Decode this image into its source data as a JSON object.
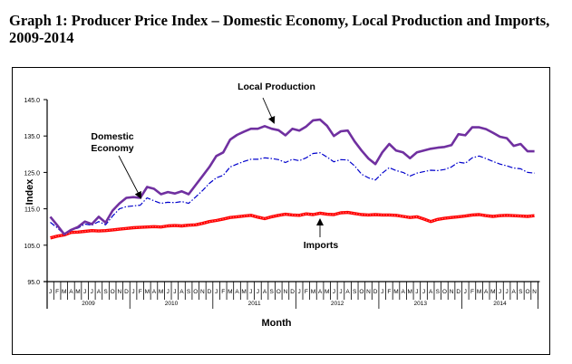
{
  "title_line1": "Graph 1: Producer Price Index –  Domestic Economy, Local Production and Imports,",
  "title_line2": "2009-2014",
  "chart_data": {
    "type": "line",
    "title": "Graph 1: Producer Price Index – Domestic Economy, Local Production and Imports, 2009-2014",
    "xlabel": "Month",
    "ylabel": "Index",
    "ylim": [
      95.0,
      145.0
    ],
    "y_ticks": [
      "95.0",
      "105.0",
      "115.0",
      "125.0",
      "135.0",
      "145.0"
    ],
    "grid": false,
    "legend": "inline annotations with arrows",
    "years": [
      "2009",
      "2010",
      "2011",
      "2012",
      "2013",
      "2014"
    ],
    "month_letters": [
      "J",
      "F",
      "M",
      "A",
      "M",
      "J",
      "J",
      "A",
      "S",
      "O",
      "N",
      "D"
    ],
    "x": [
      "Jan 2009",
      "Feb 2009",
      "Mar 2009",
      "Apr 2009",
      "May 2009",
      "Jun 2009",
      "Jul 2009",
      "Aug 2009",
      "Sep 2009",
      "Oct 2009",
      "Nov 2009",
      "Dec 2009",
      "Jan 2010",
      "Feb 2010",
      "Mar 2010",
      "Apr 2010",
      "May 2010",
      "Jun 2010",
      "Jul 2010",
      "Aug 2010",
      "Sep 2010",
      "Oct 2010",
      "Nov 2010",
      "Dec 2010",
      "Jan 2011",
      "Feb 2011",
      "Mar 2011",
      "Apr 2011",
      "May 2011",
      "Jun 2011",
      "Jul 2011",
      "Aug 2011",
      "Sep 2011",
      "Oct 2011",
      "Nov 2011",
      "Dec 2011",
      "Jan 2012",
      "Feb 2012",
      "Mar 2012",
      "Apr 2012",
      "May 2012",
      "Jun 2012",
      "Jul 2012",
      "Aug 2012",
      "Sep 2012",
      "Oct 2012",
      "Nov 2012",
      "Dec 2012",
      "Jan 2013",
      "Feb 2013",
      "Mar 2013",
      "Apr 2013",
      "May 2013",
      "Jun 2013",
      "Jul 2013",
      "Aug 2013",
      "Sep 2013",
      "Oct 2013",
      "Nov 2013",
      "Dec 2013",
      "Jan 2014",
      "Feb 2014",
      "Mar 2014",
      "Apr 2014",
      "May 2014",
      "Jun 2014",
      "Jul 2014",
      "Aug 2014",
      "Sep 2014",
      "Oct 2014",
      "Nov 2014"
    ],
    "series": [
      {
        "name": "Local Production",
        "color": "#7030A0",
        "style": "solid",
        "values": [
          112.8,
          110.5,
          108.0,
          109.2,
          110.0,
          111.5,
          110.8,
          112.8,
          111.2,
          114.5,
          116.5,
          118.0,
          118.2,
          118.0,
          121.0,
          120.5,
          119.0,
          119.6,
          119.2,
          119.8,
          119.0,
          121.5,
          124.0,
          126.5,
          129.5,
          130.5,
          134.0,
          135.3,
          136.2,
          137.0,
          137.0,
          137.7,
          137.0,
          136.6,
          135.2,
          137.0,
          136.5,
          137.6,
          139.3,
          139.5,
          137.8,
          135.0,
          136.3,
          136.5,
          133.5,
          131.0,
          128.8,
          127.3,
          130.5,
          132.8,
          131.0,
          130.5,
          128.9,
          130.5,
          131.0,
          131.5,
          131.8,
          132.0,
          132.5,
          135.5,
          135.2,
          137.4,
          137.4,
          136.9,
          135.9,
          134.8,
          134.4,
          132.3,
          132.8,
          130.8,
          130.8
        ]
      },
      {
        "name": "Domestic Economy",
        "color": "#0000CC",
        "style": "dash-dot",
        "values": [
          111.3,
          109.8,
          108.0,
          109.2,
          109.7,
          110.8,
          110.5,
          111.5,
          110.6,
          113.0,
          115.0,
          115.6,
          115.8,
          116.0,
          118.0,
          117.2,
          116.5,
          116.8,
          116.7,
          117.0,
          116.5,
          118.2,
          120.0,
          122.0,
          123.5,
          124.2,
          126.5,
          127.3,
          128.0,
          128.6,
          128.6,
          129.0,
          128.8,
          128.5,
          127.7,
          128.6,
          128.2,
          129.0,
          130.2,
          130.4,
          129.2,
          127.9,
          128.5,
          128.4,
          126.8,
          124.5,
          123.5,
          122.9,
          124.8,
          126.3,
          125.5,
          125.0,
          124.0,
          124.8,
          125.2,
          125.6,
          125.5,
          125.8,
          126.5,
          127.8,
          127.5,
          129.0,
          129.5,
          128.8,
          128.0,
          127.3,
          126.8,
          126.2,
          126.0,
          125.0,
          124.8
        ]
      },
      {
        "name": "Imports",
        "color": "#FF0000",
        "style": "thick-dotted",
        "values": [
          107.0,
          107.5,
          107.8,
          108.5,
          108.6,
          108.8,
          109.0,
          108.9,
          109.0,
          109.2,
          109.4,
          109.6,
          109.8,
          109.9,
          110.0,
          110.1,
          110.0,
          110.3,
          110.4,
          110.3,
          110.5,
          110.6,
          111.0,
          111.5,
          111.8,
          112.2,
          112.6,
          112.8,
          113.0,
          113.2,
          112.7,
          112.3,
          112.8,
          113.2,
          113.5,
          113.3,
          113.2,
          113.6,
          113.4,
          113.8,
          113.5,
          113.4,
          113.9,
          114.0,
          113.7,
          113.4,
          113.3,
          113.4,
          113.3,
          113.3,
          113.2,
          112.9,
          112.6,
          112.8,
          112.2,
          111.5,
          112.1,
          112.4,
          112.6,
          112.8,
          113.0,
          113.3,
          113.4,
          113.1,
          112.9,
          113.1,
          113.2,
          113.1,
          113.0,
          112.9,
          113.1
        ]
      }
    ],
    "annotations": [
      {
        "text": "Local Production",
        "points_to": "Local Production",
        "arrow_direction": "down"
      },
      {
        "text": "Domestic Economy",
        "points_to": "Domestic Economy",
        "arrow_direction": "down-right"
      },
      {
        "text": "Imports",
        "points_to": "Imports",
        "arrow_direction": "up"
      }
    ]
  }
}
